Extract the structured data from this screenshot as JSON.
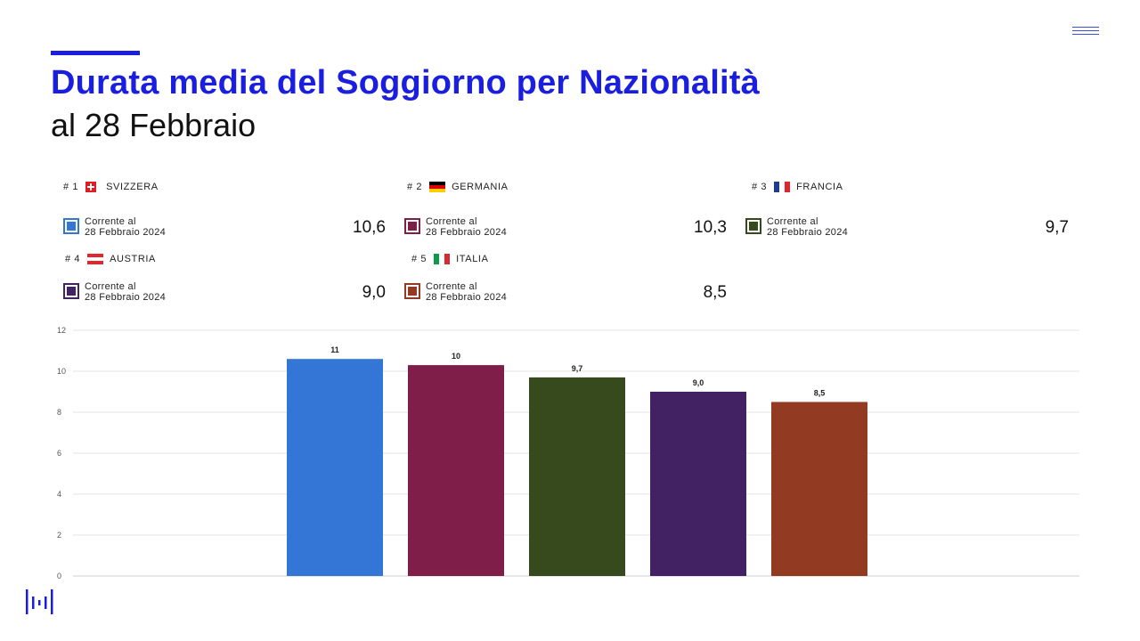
{
  "header": {
    "title": "Durata media del Soggiorno per Nazionalità",
    "subtitle": "al 28 Febbraio"
  },
  "legend_label": {
    "line1": "Corrente al",
    "line2": "28 Febbraio 2024"
  },
  "rankings": [
    {
      "rank": "# 1",
      "country": "SVIZZERA",
      "flag": "swiss-flag-icon",
      "value_text": "10,6",
      "color": "#3376d6"
    },
    {
      "rank": "# 2",
      "country": "GERMANIA",
      "flag": "german-flag-icon",
      "value_text": "10,3",
      "color": "#7f1e49"
    },
    {
      "rank": "# 3",
      "country": "FRANCIA",
      "flag": "french-flag-icon",
      "value_text": "9,7",
      "color": "#374a1e"
    },
    {
      "rank": "# 4",
      "country": "AUSTRIA",
      "flag": "austrian-flag-icon",
      "value_text": "9,0",
      "color": "#432264"
    },
    {
      "rank": "# 5",
      "country": "ITALIA",
      "flag": "italian-flag-icon",
      "value_text": "8,5",
      "color": "#933a22"
    }
  ],
  "chart_data": {
    "type": "bar",
    "categories": [
      "SVIZZERA",
      "GERMANIA",
      "FRANCIA",
      "AUSTRIA",
      "ITALIA"
    ],
    "values": [
      10.6,
      10.3,
      9.7,
      9.0,
      8.5
    ],
    "data_labels": [
      "11",
      "10",
      "9,7",
      "9,0",
      "8,5"
    ],
    "colors": [
      "#3376d6",
      "#7f1e49",
      "#374a1e",
      "#432264",
      "#933a22"
    ],
    "ylim": [
      0,
      12
    ],
    "yticks": [
      0,
      2,
      4,
      6,
      8,
      10,
      12
    ],
    "grid": true,
    "title": "",
    "xlabel": "",
    "ylabel": ""
  }
}
